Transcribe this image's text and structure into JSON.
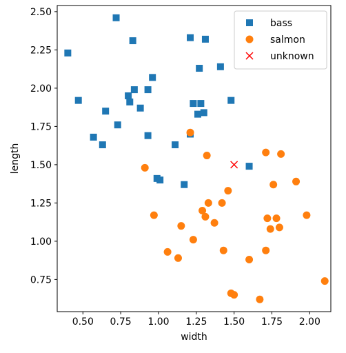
{
  "chart_data": {
    "type": "scatter",
    "xlabel": "width",
    "ylabel": "length",
    "xlim": [
      0.33,
      2.14
    ],
    "ylim": [
      0.54,
      2.54
    ],
    "xticks": [
      0.5,
      0.75,
      1.0,
      1.25,
      1.5,
      1.75,
      2.0
    ],
    "xtick_labels": [
      "0.50",
      "0.75",
      "1.00",
      "1.25",
      "1.50",
      "1.75",
      "2.00"
    ],
    "yticks": [
      0.75,
      1.0,
      1.25,
      1.5,
      1.75,
      2.0,
      2.25,
      2.5
    ],
    "ytick_labels": [
      "0.75",
      "1.00",
      "1.25",
      "1.50",
      "1.75",
      "2.00",
      "2.25",
      "2.50"
    ],
    "grid": false,
    "legend_position": "top-right",
    "series": [
      {
        "name": "bass",
        "marker": "square",
        "color": "#1f77b4",
        "points": [
          [
            0.4,
            2.23
          ],
          [
            0.47,
            1.92
          ],
          [
            0.57,
            1.68
          ],
          [
            0.63,
            1.63
          ],
          [
            0.65,
            1.85
          ],
          [
            0.72,
            2.46
          ],
          [
            0.73,
            1.76
          ],
          [
            0.8,
            1.95
          ],
          [
            0.81,
            1.91
          ],
          [
            0.83,
            2.31
          ],
          [
            0.84,
            1.99
          ],
          [
            0.88,
            1.87
          ],
          [
            0.93,
            1.99
          ],
          [
            0.93,
            1.69
          ],
          [
            0.96,
            2.07
          ],
          [
            0.99,
            1.41
          ],
          [
            1.01,
            1.4
          ],
          [
            1.11,
            1.63
          ],
          [
            1.17,
            1.37
          ],
          [
            1.21,
            2.33
          ],
          [
            1.21,
            1.7
          ],
          [
            1.23,
            1.9
          ],
          [
            1.26,
            1.83
          ],
          [
            1.27,
            2.13
          ],
          [
            1.28,
            1.9
          ],
          [
            1.3,
            1.84
          ],
          [
            1.31,
            2.32
          ],
          [
            1.41,
            2.14
          ],
          [
            1.48,
            1.92
          ],
          [
            1.6,
            1.49
          ]
        ]
      },
      {
        "name": "salmon",
        "marker": "circle",
        "color": "#ff7f0e",
        "points": [
          [
            0.91,
            1.48
          ],
          [
            0.97,
            1.17
          ],
          [
            1.06,
            0.93
          ],
          [
            1.13,
            0.89
          ],
          [
            1.15,
            1.1
          ],
          [
            1.21,
            1.71
          ],
          [
            1.23,
            1.01
          ],
          [
            1.29,
            1.2
          ],
          [
            1.31,
            1.16
          ],
          [
            1.32,
            1.56
          ],
          [
            1.33,
            1.25
          ],
          [
            1.37,
            1.12
          ],
          [
            1.42,
            1.25
          ],
          [
            1.43,
            0.94
          ],
          [
            1.46,
            1.33
          ],
          [
            1.48,
            0.66
          ],
          [
            1.5,
            0.65
          ],
          [
            1.6,
            0.88
          ],
          [
            1.67,
            0.62
          ],
          [
            1.71,
            0.94
          ],
          [
            1.71,
            1.58
          ],
          [
            1.72,
            1.15
          ],
          [
            1.74,
            1.08
          ],
          [
            1.76,
            1.37
          ],
          [
            1.78,
            1.15
          ],
          [
            1.8,
            1.09
          ],
          [
            1.81,
            1.57
          ],
          [
            1.91,
            1.39
          ],
          [
            1.98,
            1.17
          ],
          [
            2.1,
            0.74
          ]
        ]
      },
      {
        "name": "unknown",
        "marker": "x",
        "color": "#ff0000",
        "points": [
          [
            1.5,
            1.5
          ]
        ]
      }
    ]
  }
}
